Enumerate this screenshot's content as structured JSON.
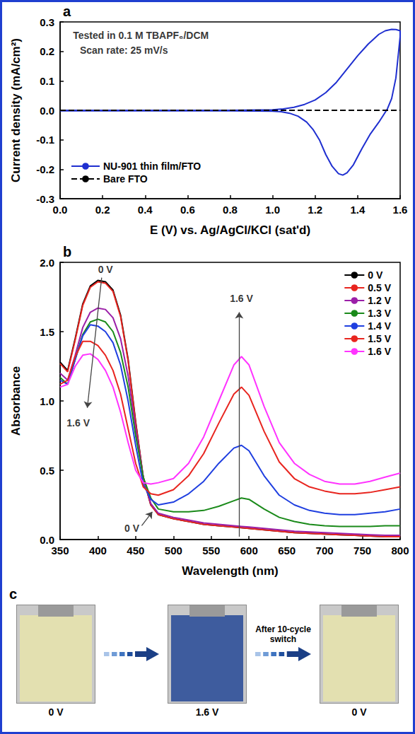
{
  "chart_data": [
    {
      "type": "line",
      "panel_label": "a",
      "xlabel": "E (V) vs. Ag/AgCl/KCl (sat'd)",
      "ylabel": "Current density (mA/cm²)",
      "xlim": [
        0,
        1.6
      ],
      "xticks": [
        {
          "value": 0,
          "label": "0.0"
        },
        0.2,
        0.4,
        0.6,
        0.8,
        {
          "value": 1,
          "label": "1.0"
        },
        1.2,
        1.4,
        1.6
      ],
      "ylim": [
        -0.3,
        0.3
      ],
      "yticks": [
        -0.3,
        -0.2,
        -0.1,
        {
          "value": 0,
          "label": "0.0"
        },
        0.1,
        0.2,
        0.3
      ],
      "grid": false,
      "legend": "lower left",
      "annotations": [
        {
          "text": "Tested in 0.1 M TBAPF₆/DCM",
          "x": 0.38,
          "y": 0.255
        },
        {
          "text": "Scan rate: 25 mV/s",
          "x": 0.3,
          "y": 0.205
        }
      ],
      "arrows": [],
      "series": [
        {
          "name": "NU-901 thin film/FTO",
          "color": "#1f2fd0",
          "line_style": "solid",
          "x": [
            0,
            0.2,
            0.4,
            0.6,
            0.8,
            1.0,
            1.05,
            1.1,
            1.15,
            1.2,
            1.25,
            1.3,
            1.35,
            1.4,
            1.45,
            1.5,
            1.53,
            1.56,
            1.58,
            1.6,
            1.6,
            1.59,
            1.58,
            1.56,
            1.54,
            1.5,
            1.46,
            1.42,
            1.38,
            1.35,
            1.33,
            1.31,
            1.28,
            1.25,
            1.22,
            1.19,
            1.16,
            1.12,
            1.08,
            1.04,
            1.0,
            0.8,
            0.6,
            0.4,
            0.2,
            0
          ],
          "values": [
            0,
            0,
            0,
            0,
            0,
            0.002,
            0.005,
            0.01,
            0.02,
            0.035,
            0.06,
            0.095,
            0.14,
            0.185,
            0.225,
            0.258,
            0.27,
            0.275,
            0.274,
            0.27,
            0.25,
            0.18,
            0.11,
            0.04,
            0.005,
            -0.04,
            -0.08,
            -0.13,
            -0.185,
            -0.212,
            -0.22,
            -0.215,
            -0.19,
            -0.15,
            -0.1,
            -0.065,
            -0.04,
            -0.02,
            -0.01,
            -0.005,
            -0.003,
            -0.002,
            -0.002,
            -0.002,
            -0.002,
            -0.002
          ]
        },
        {
          "name": "Bare FTO",
          "color": "#000000",
          "line_style": "dashed",
          "x": [
            0,
            1.6
          ],
          "values": [
            0,
            0
          ]
        }
      ]
    },
    {
      "type": "line",
      "panel_label": "b",
      "xlabel": "Wavelength (nm)",
      "ylabel": "Absorbance",
      "xlim": [
        350,
        800
      ],
      "xticks": [
        350,
        400,
        450,
        500,
        550,
        600,
        650,
        700,
        750,
        800
      ],
      "ylim": [
        0,
        2
      ],
      "yticks": [
        {
          "value": 0,
          "label": "0.0"
        },
        0.5,
        {
          "value": 1,
          "label": "1.0"
        },
        1.5,
        {
          "value": 2,
          "label": "2.0"
        }
      ],
      "grid": false,
      "legend": "upper right",
      "annotations": [
        {
          "text": "0 V",
          "x": 410,
          "y": 1.95
        },
        {
          "text": "1.6 V",
          "x": 374,
          "y": 0.84
        },
        {
          "text": "0 V",
          "x": 445,
          "y": 0.08
        },
        {
          "text": "1.6 V",
          "x": 590,
          "y": 1.74
        }
      ],
      "arrows": [
        {
          "from": [
            405,
            1.89
          ],
          "to": [
            386,
            0.95
          ]
        },
        {
          "from": [
            458,
            0.1
          ],
          "to": [
            472,
            0.2
          ]
        },
        {
          "from": [
            587,
            0.02
          ],
          "to": [
            587,
            1.64
          ]
        }
      ],
      "x": [
        350,
        360,
        370,
        380,
        390,
        400,
        410,
        420,
        430,
        440,
        450,
        460,
        470,
        480,
        500,
        520,
        540,
        560,
        580,
        590,
        600,
        620,
        640,
        660,
        680,
        700,
        720,
        740,
        760,
        780,
        800
      ],
      "series": [
        {
          "name": "0 V",
          "color": "#000000",
          "line_style": "solid",
          "values": [
            1.28,
            1.22,
            1.45,
            1.7,
            1.83,
            1.87,
            1.86,
            1.8,
            1.62,
            1.3,
            0.85,
            0.45,
            0.25,
            0.18,
            0.15,
            0.13,
            0.11,
            0.1,
            0.09,
            0.085,
            0.08,
            0.07,
            0.06,
            0.05,
            0.045,
            0.04,
            0.035,
            0.03,
            0.025,
            0.02,
            0.02
          ]
        },
        {
          "name": "0.5 V",
          "color": "#e8251f",
          "line_style": "solid",
          "values": [
            1.27,
            1.21,
            1.44,
            1.69,
            1.82,
            1.86,
            1.85,
            1.79,
            1.61,
            1.29,
            0.84,
            0.45,
            0.25,
            0.18,
            0.15,
            0.13,
            0.11,
            0.1,
            0.09,
            0.085,
            0.08,
            0.07,
            0.06,
            0.05,
            0.045,
            0.04,
            0.035,
            0.03,
            0.025,
            0.02,
            0.02
          ]
        },
        {
          "name": "1.2 V",
          "color": "#9b1fa8",
          "line_style": "solid",
          "values": [
            1.2,
            1.15,
            1.33,
            1.53,
            1.64,
            1.67,
            1.66,
            1.6,
            1.45,
            1.18,
            0.8,
            0.45,
            0.26,
            0.19,
            0.16,
            0.14,
            0.12,
            0.11,
            0.1,
            0.095,
            0.09,
            0.08,
            0.07,
            0.06,
            0.055,
            0.05,
            0.045,
            0.04,
            0.035,
            0.03,
            0.03
          ]
        },
        {
          "name": "1.3 V",
          "color": "#1a8a1a",
          "line_style": "solid",
          "values": [
            1.17,
            1.12,
            1.3,
            1.48,
            1.57,
            1.59,
            1.57,
            1.5,
            1.35,
            1.1,
            0.75,
            0.45,
            0.3,
            0.22,
            0.2,
            0.2,
            0.21,
            0.24,
            0.28,
            0.3,
            0.29,
            0.22,
            0.16,
            0.13,
            0.11,
            0.1,
            0.095,
            0.095,
            0.095,
            0.1,
            0.1
          ]
        },
        {
          "name": "1.4 V",
          "color": "#1f3fe0",
          "line_style": "solid",
          "values": [
            1.15,
            1.12,
            1.3,
            1.47,
            1.55,
            1.54,
            1.5,
            1.42,
            1.26,
            1.0,
            0.68,
            0.4,
            0.29,
            0.25,
            0.27,
            0.33,
            0.42,
            0.55,
            0.66,
            0.68,
            0.64,
            0.46,
            0.32,
            0.25,
            0.21,
            0.19,
            0.18,
            0.18,
            0.19,
            0.2,
            0.22
          ]
        },
        {
          "name": "1.5 V",
          "color": "#e8251f",
          "line_style": "solid",
          "values": [
            1.12,
            1.15,
            1.32,
            1.43,
            1.43,
            1.4,
            1.33,
            1.22,
            1.05,
            0.8,
            0.55,
            0.38,
            0.33,
            0.32,
            0.36,
            0.46,
            0.62,
            0.84,
            1.05,
            1.1,
            1.04,
            0.78,
            0.56,
            0.44,
            0.38,
            0.35,
            0.33,
            0.33,
            0.34,
            0.36,
            0.38
          ]
        },
        {
          "name": "1.6 V",
          "color": "#ff33ff",
          "line_style": "solid",
          "values": [
            1.1,
            1.12,
            1.25,
            1.33,
            1.34,
            1.3,
            1.22,
            1.1,
            0.92,
            0.7,
            0.5,
            0.41,
            0.4,
            0.41,
            0.44,
            0.55,
            0.74,
            1.0,
            1.26,
            1.32,
            1.26,
            0.96,
            0.7,
            0.55,
            0.47,
            0.42,
            0.4,
            0.4,
            0.42,
            0.45,
            0.48
          ]
        }
      ]
    }
  ],
  "photos": {
    "panel_label": "c",
    "labels": [
      "0 V",
      "1.6 V",
      "0 V"
    ],
    "colors": [
      "#e3e0b0",
      "#3e5c9e",
      "#e3e0b0"
    ],
    "caption": "After 10-cycle switch"
  }
}
